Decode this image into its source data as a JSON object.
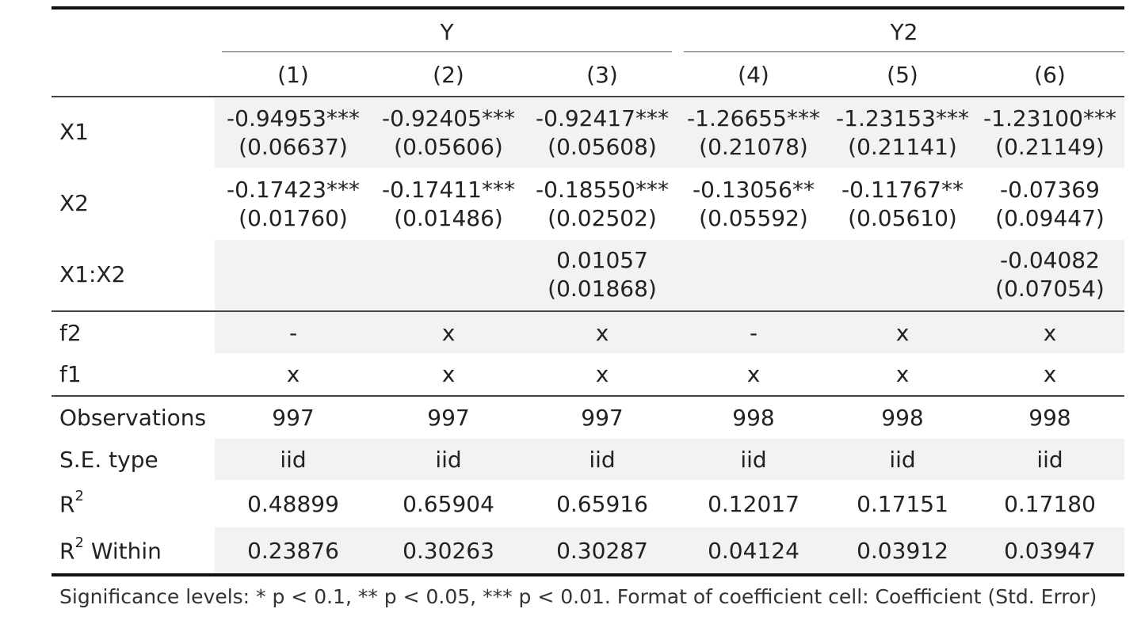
{
  "table": {
    "column_groups": [
      {
        "label": "Y"
      },
      {
        "label": "Y2"
      }
    ],
    "columns": [
      "(1)",
      "(2)",
      "(3)",
      "(4)",
      "(5)",
      "(6)"
    ],
    "coef_rows": [
      {
        "label": "X1",
        "cells": [
          {
            "coef": "-0.94953***",
            "se": "(0.06637)"
          },
          {
            "coef": "-0.92405***",
            "se": "(0.05606)"
          },
          {
            "coef": "-0.92417***",
            "se": "(0.05608)"
          },
          {
            "coef": "-1.26655***",
            "se": "(0.21078)"
          },
          {
            "coef": "-1.23153***",
            "se": "(0.21141)"
          },
          {
            "coef": "-1.23100***",
            "se": "(0.21149)"
          }
        ]
      },
      {
        "label": "X2",
        "cells": [
          {
            "coef": "-0.17423***",
            "se": "(0.01760)"
          },
          {
            "coef": "-0.17411***",
            "se": "(0.01486)"
          },
          {
            "coef": "-0.18550***",
            "se": "(0.02502)"
          },
          {
            "coef": "-0.13056**",
            "se": "(0.05592)"
          },
          {
            "coef": "-0.11767**",
            "se": "(0.05610)"
          },
          {
            "coef": "-0.07369",
            "se": "(0.09447)"
          }
        ]
      },
      {
        "label": "X1:X2",
        "cells": [
          {
            "coef": "",
            "se": ""
          },
          {
            "coef": "",
            "se": ""
          },
          {
            "coef": "0.01057",
            "se": "(0.01868)"
          },
          {
            "coef": "",
            "se": ""
          },
          {
            "coef": "",
            "se": ""
          },
          {
            "coef": "-0.04082",
            "se": "(0.07054)"
          }
        ]
      }
    ],
    "fe_rows": [
      {
        "label": "f2",
        "cells": [
          "-",
          "x",
          "x",
          "-",
          "x",
          "x"
        ]
      },
      {
        "label": "f1",
        "cells": [
          "x",
          "x",
          "x",
          "x",
          "x",
          "x"
        ]
      }
    ],
    "stat_rows": [
      {
        "label": "Observations",
        "cells": [
          "997",
          "997",
          "997",
          "998",
          "998",
          "998"
        ]
      },
      {
        "label": "S.E. type",
        "cells": [
          "iid",
          "iid",
          "iid",
          "iid",
          "iid",
          "iid"
        ]
      },
      {
        "label": "R",
        "sup": "2",
        "suffix": "",
        "cells": [
          "0.48899",
          "0.65904",
          "0.65916",
          "0.12017",
          "0.17151",
          "0.17180"
        ]
      },
      {
        "label": "R",
        "sup": "2",
        "suffix": " Within",
        "cells": [
          "0.23876",
          "0.30263",
          "0.30287",
          "0.04124",
          "0.03912",
          "0.03947"
        ]
      }
    ],
    "note": "Significance levels: * p < 0.1, ** p < 0.05, *** p < 0.01. Format of coefficient cell: Coefficient (Std. Error)"
  }
}
